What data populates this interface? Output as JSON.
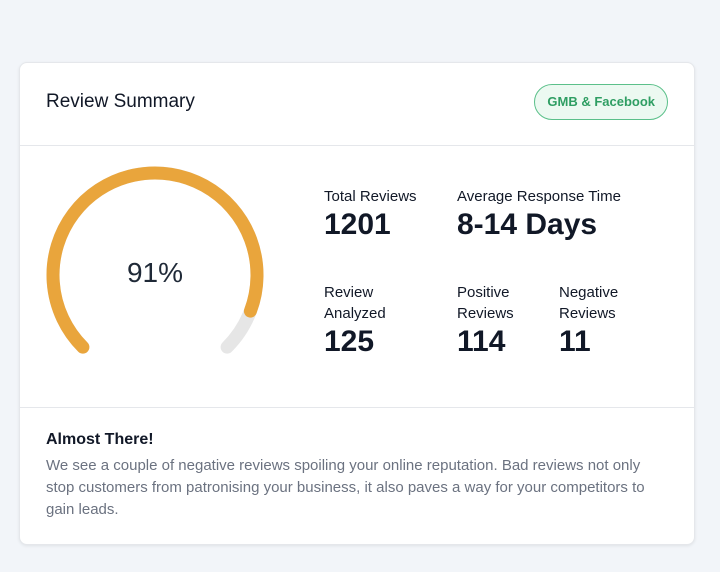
{
  "card": {
    "title": "Review Summary",
    "badge": "GMB & Facebook"
  },
  "gauge": {
    "percent_label": "91%",
    "value_fraction": 0.91,
    "track_color": "#e6e6e6",
    "fill_color": "#e9a53c"
  },
  "stats": {
    "total_reviews": {
      "label": "Total Reviews",
      "value": "1201"
    },
    "avg_response": {
      "label": "Average Response Time",
      "value": "8-14 Days"
    },
    "analyzed": {
      "label_line1": "Review",
      "label_line2": "Analyzed",
      "value": "125"
    },
    "positive": {
      "label_line1": "Positive",
      "label_line2": "Reviews",
      "value": "114"
    },
    "negative": {
      "label_line1": "Negative",
      "label_line2": "Reviews",
      "value": "11"
    }
  },
  "footer": {
    "heading": "Almost There!",
    "text": "We see a couple of negative reviews spoiling your online reputation. Bad reviews not only stop customers from patronising your business, it also paves a way for your competitors to gain leads."
  }
}
